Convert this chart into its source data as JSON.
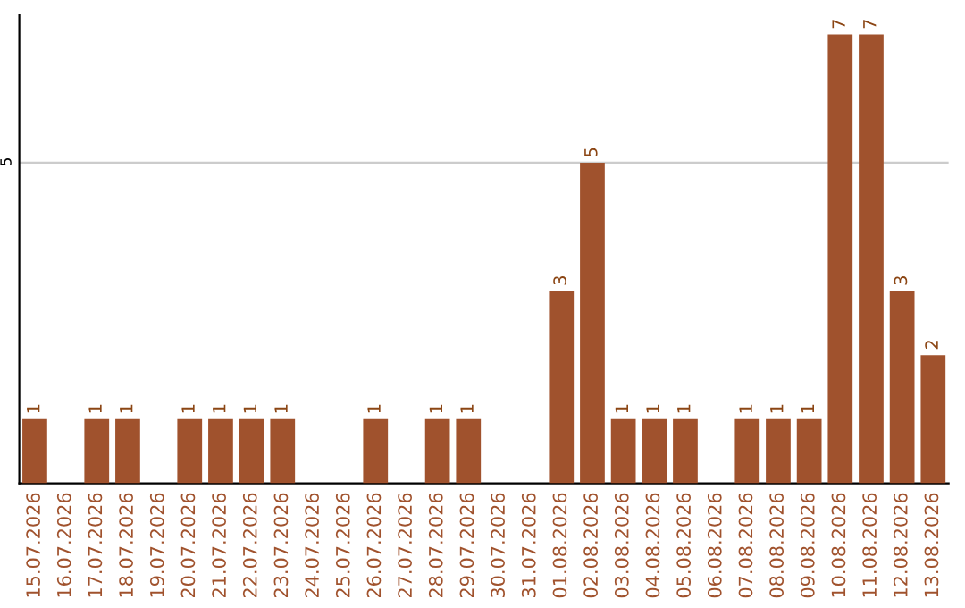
{
  "chart_data": {
    "type": "bar",
    "categories": [
      "15.07.2026",
      "16.07.2026",
      "17.07.2026",
      "18.07.2026",
      "19.07.2026",
      "20.07.2026",
      "21.07.2026",
      "22.07.2026",
      "23.07.2026",
      "24.07.2026",
      "25.07.2026",
      "26.07.2026",
      "27.07.2026",
      "28.07.2026",
      "29.07.2026",
      "30.07.2026",
      "31.07.2026",
      "01.08.2026",
      "02.08.2026",
      "03.08.2026",
      "04.08.2026",
      "05.08.2026",
      "06.08.2026",
      "07.08.2026",
      "08.08.2026",
      "09.08.2026",
      "10.08.2026",
      "11.08.2026",
      "12.08.2026",
      "13.08.2026"
    ],
    "values": [
      1,
      0,
      1,
      1,
      0,
      1,
      1,
      1,
      1,
      0,
      0,
      1,
      0,
      1,
      1,
      0,
      0,
      3,
      5,
      1,
      1,
      1,
      0,
      1,
      1,
      1,
      7,
      7,
      3,
      2
    ],
    "value_labels": [
      "1",
      null,
      "1",
      "1",
      null,
      "1",
      "1",
      "1",
      "1",
      null,
      null,
      "1",
      null,
      "1",
      "1",
      null,
      null,
      "3",
      "5",
      "1",
      "1",
      "1",
      null,
      "1",
      "1",
      "1",
      "7",
      "7",
      "3",
      "2"
    ],
    "color": "#a0522d",
    "ylim": [
      0,
      7.3
    ],
    "yticks": [
      5
    ],
    "grid": "y"
  }
}
